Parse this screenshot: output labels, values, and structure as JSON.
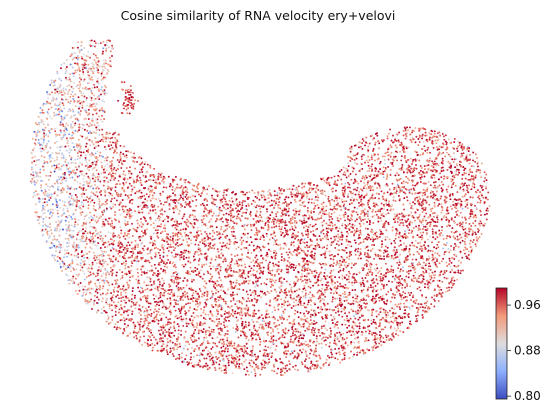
{
  "chart_data": {
    "type": "scatter",
    "title": "Cosine similarity of RNA velocity ery+velovi",
    "xlabel": "",
    "ylabel": "",
    "grid": false,
    "frame": false,
    "colormap": "coolwarm",
    "colorbar": {
      "vmin": 0.795,
      "vmax": 0.99,
      "ticks": [
        0.8,
        0.88,
        0.96
      ],
      "tick_labels": [
        "0.80",
        "0.88",
        "0.96"
      ]
    },
    "colors": {
      "low": "#3b4cc0",
      "mid": "#dddddd",
      "high": "#b40426"
    },
    "note_points": "approximately 9000 cells on a 2D embedding forming a crescent shape; generated procedurally",
    "point_count": 9000
  }
}
